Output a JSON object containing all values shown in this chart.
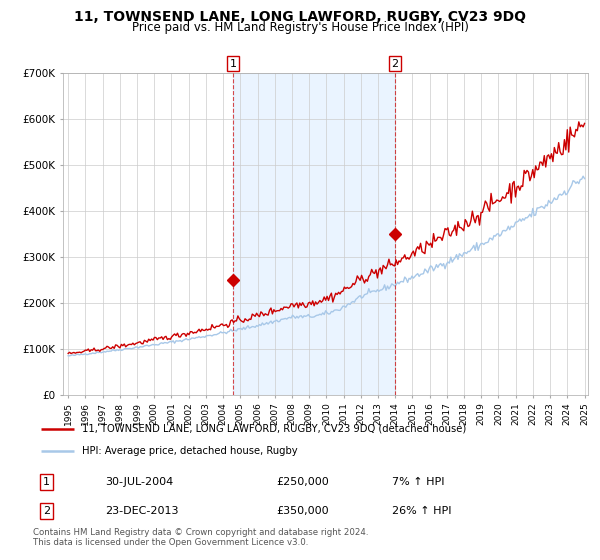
{
  "title": "11, TOWNSEND LANE, LONG LAWFORD, RUGBY, CV23 9DQ",
  "subtitle": "Price paid vs. HM Land Registry's House Price Index (HPI)",
  "ylim": [
    0,
    700000
  ],
  "yticks": [
    0,
    100000,
    200000,
    300000,
    400000,
    500000,
    600000,
    700000
  ],
  "ytick_labels": [
    "£0",
    "£100K",
    "£200K",
    "£300K",
    "£400K",
    "£500K",
    "£600K",
    "£700K"
  ],
  "year_start": 1995,
  "year_end": 2025,
  "hpi_color": "#a8c8e8",
  "price_color": "#cc0000",
  "shade_color": "#ddeeff",
  "shade_alpha": 0.6,
  "point1_year": 2004.58,
  "point1_value": 250000,
  "point2_year": 2013.98,
  "point2_value": 350000,
  "point1_label": "1",
  "point2_label": "2",
  "legend_line1": "11, TOWNSEND LANE, LONG LAWFORD, RUGBY, CV23 9DQ (detached house)",
  "legend_line2": "HPI: Average price, detached house, Rugby",
  "table_rows": [
    {
      "num": "1",
      "date": "30-JUL-2004",
      "price": "£250,000",
      "hpi": "7% ↑ HPI"
    },
    {
      "num": "2",
      "date": "23-DEC-2013",
      "price": "£350,000",
      "hpi": "26% ↑ HPI"
    }
  ],
  "footnote": "Contains HM Land Registry data © Crown copyright and database right 2024.\nThis data is licensed under the Open Government Licence v3.0.",
  "background_color": "#ffffff",
  "grid_color": "#cccccc",
  "title_fontsize": 10,
  "subtitle_fontsize": 8.5,
  "axis_fontsize": 7.5,
  "seed": 42
}
